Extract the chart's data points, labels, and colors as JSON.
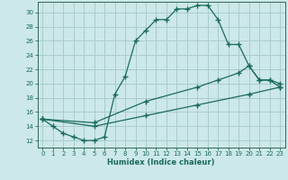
{
  "xlabel": "Humidex (Indice chaleur)",
  "bg_color": "#cce8e8",
  "grid_color": "#aacccc",
  "line_color": "#1a6b5a",
  "spine_color": "#336655",
  "xlim": [
    -0.5,
    23.5
  ],
  "ylim": [
    11,
    31.5
  ],
  "yticks": [
    12,
    14,
    16,
    18,
    20,
    22,
    24,
    26,
    28,
    30
  ],
  "xticks": [
    0,
    1,
    2,
    3,
    4,
    5,
    6,
    7,
    8,
    9,
    10,
    11,
    12,
    13,
    14,
    15,
    16,
    17,
    18,
    19,
    20,
    21,
    22,
    23
  ],
  "line1_x": [
    0,
    1,
    2,
    3,
    4,
    5,
    6,
    7,
    8,
    9,
    10,
    11,
    12,
    13,
    14,
    15,
    16,
    17,
    18,
    19,
    20,
    21,
    22,
    23
  ],
  "line1_y": [
    15,
    14,
    13,
    12.5,
    12,
    12,
    12.5,
    18.5,
    21,
    26,
    27.5,
    29,
    29,
    30.5,
    30.5,
    31,
    31,
    29,
    25.5,
    25.5,
    22.5,
    20.5,
    20.5,
    19.5
  ],
  "line2_x": [
    0,
    5,
    10,
    15,
    17,
    19,
    20,
    21,
    22,
    23
  ],
  "line2_y": [
    15,
    14.5,
    17.5,
    19.5,
    20.5,
    21.5,
    22.5,
    20.5,
    20.5,
    20
  ],
  "line3_x": [
    0,
    5,
    10,
    15,
    20,
    23
  ],
  "line3_y": [
    15,
    14,
    15.5,
    17,
    18.5,
    19.5
  ]
}
